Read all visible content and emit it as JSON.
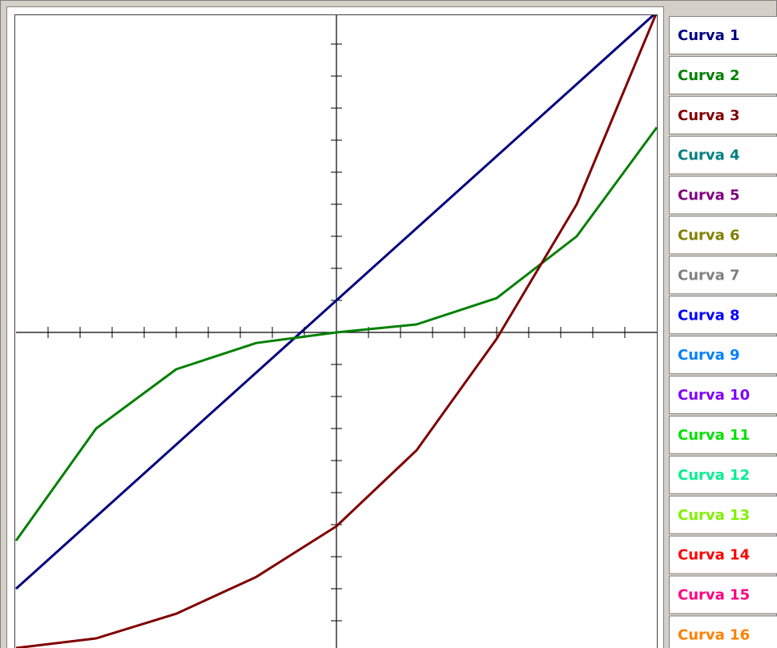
{
  "chart_data": {
    "type": "line",
    "x": [
      -10,
      -7.5,
      -5,
      -2.5,
      0,
      2.5,
      5,
      7.5,
      10
    ],
    "xlim": [
      -10,
      10
    ],
    "ylim": [
      -10,
      10
    ],
    "xticks": [
      -9,
      -8,
      -7,
      -6,
      -5,
      -4,
      -3,
      -2,
      -1,
      1,
      2,
      3,
      4,
      5,
      6,
      7,
      8,
      9
    ],
    "yticks": [
      -9,
      -8,
      -7,
      -6,
      -5,
      -4,
      -3,
      -2,
      -1,
      1,
      2,
      3,
      4,
      5,
      6,
      7,
      8,
      9
    ],
    "series": [
      {
        "name": "Curva 1",
        "color": "#000080",
        "values": [
          -8,
          -5.75,
          -3.5,
          -1.25,
          1,
          3.25,
          5.5,
          7.75,
          10
        ]
      },
      {
        "name": "Curva 2",
        "color": "#008000",
        "values": [
          -6.5,
          -3,
          -1.15,
          -0.33,
          0,
          0.25,
          1.07,
          3,
          6.4
        ]
      },
      {
        "name": "Curva 3",
        "color": "#800000",
        "values": [
          -9.85,
          -9.55,
          -8.78,
          -7.63,
          -6.05,
          -3.68,
          -0.2,
          4,
          10
        ]
      },
      {
        "name": "Curva 4",
        "color": "#008080",
        "values": [
          null,
          null,
          null,
          null,
          null,
          null,
          null,
          null,
          null
        ]
      },
      {
        "name": "Curva 5",
        "color": "#800080",
        "values": [
          null,
          null,
          null,
          null,
          null,
          null,
          null,
          null,
          null
        ]
      },
      {
        "name": "Curva 6",
        "color": "#808000",
        "values": [
          null,
          null,
          null,
          null,
          null,
          null,
          null,
          null,
          null
        ]
      },
      {
        "name": "Curva 7",
        "color": "#808080",
        "values": [
          null,
          null,
          null,
          null,
          null,
          null,
          null,
          null,
          null
        ]
      },
      {
        "name": "Curva 8",
        "color": "#0000ff",
        "values": [
          null,
          null,
          null,
          null,
          null,
          null,
          null,
          null,
          null
        ]
      },
      {
        "name": "Curva 9",
        "color": "#0080ff",
        "values": [
          null,
          null,
          null,
          null,
          null,
          null,
          null,
          null,
          null
        ]
      },
      {
        "name": "Curva 10",
        "color": "#8000ff",
        "values": [
          null,
          null,
          null,
          null,
          null,
          null,
          null,
          null,
          null
        ]
      },
      {
        "name": "Curva 11",
        "color": "#00e000",
        "values": [
          null,
          null,
          null,
          null,
          null,
          null,
          null,
          null,
          null
        ]
      },
      {
        "name": "Curva 12",
        "color": "#00f090",
        "values": [
          null,
          null,
          null,
          null,
          null,
          null,
          null,
          null,
          null
        ]
      },
      {
        "name": "Curva 13",
        "color": "#80f000",
        "values": [
          null,
          null,
          null,
          null,
          null,
          null,
          null,
          null,
          null
        ]
      },
      {
        "name": "Curva 14",
        "color": "#ff0000",
        "values": [
          null,
          null,
          null,
          null,
          null,
          null,
          null,
          null,
          null
        ]
      },
      {
        "name": "Curva 15",
        "color": "#ff0080",
        "values": [
          null,
          null,
          null,
          null,
          null,
          null,
          null,
          null,
          null
        ]
      },
      {
        "name": "Curva 16",
        "color": "#ff8000",
        "values": [
          null,
          null,
          null,
          null,
          null,
          null,
          null,
          null,
          null
        ]
      }
    ]
  }
}
